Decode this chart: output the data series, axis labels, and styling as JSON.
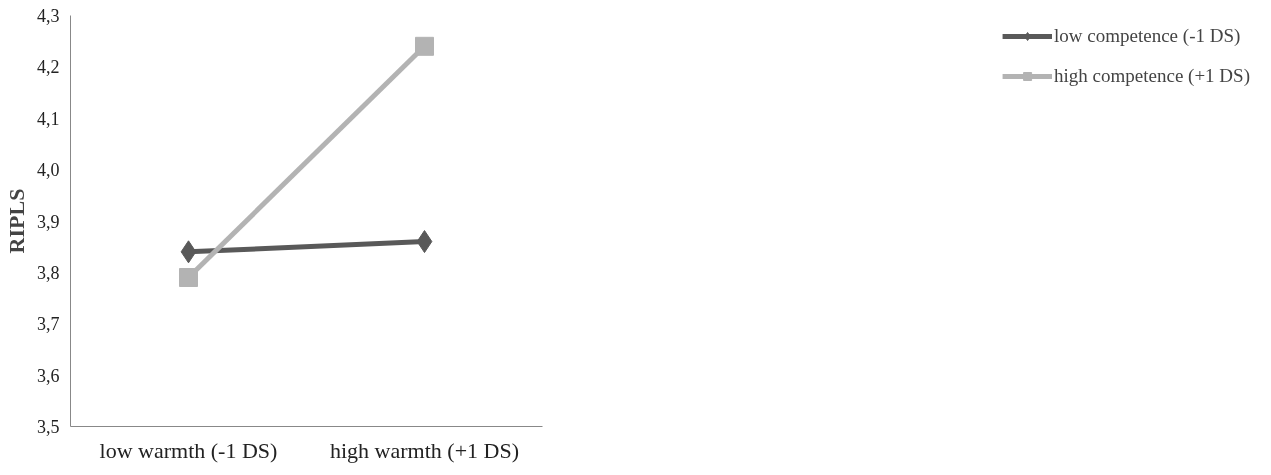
{
  "chart_data": {
    "type": "line",
    "ylabel": "RIPLS",
    "categories": [
      "low warmth (-1 DS)",
      "high warmth (+1 DS)"
    ],
    "series": [
      {
        "name": "low competence (-1 DS)",
        "color": "#595959",
        "marker": "diamond",
        "values": [
          3.84,
          3.86
        ]
      },
      {
        "name": "high competence (+1 DS)",
        "color": "#b3b3b3",
        "marker": "square",
        "values": [
          3.79,
          4.24
        ]
      }
    ],
    "ylim": [
      3.5,
      4.3
    ],
    "yticks": [
      {
        "value": 3.5,
        "label": "3,5"
      },
      {
        "value": 3.6,
        "label": "3,6"
      },
      {
        "value": 3.7,
        "label": "3,7"
      },
      {
        "value": 3.8,
        "label": "3,8"
      },
      {
        "value": 3.9,
        "label": "3,9"
      },
      {
        "value": 4.0,
        "label": "4,0"
      },
      {
        "value": 4.1,
        "label": "4,1"
      },
      {
        "value": 4.2,
        "label": "4,2"
      },
      {
        "value": 4.3,
        "label": "4,3"
      }
    ],
    "grid": false,
    "legend": "right",
    "line_style": "solid"
  }
}
